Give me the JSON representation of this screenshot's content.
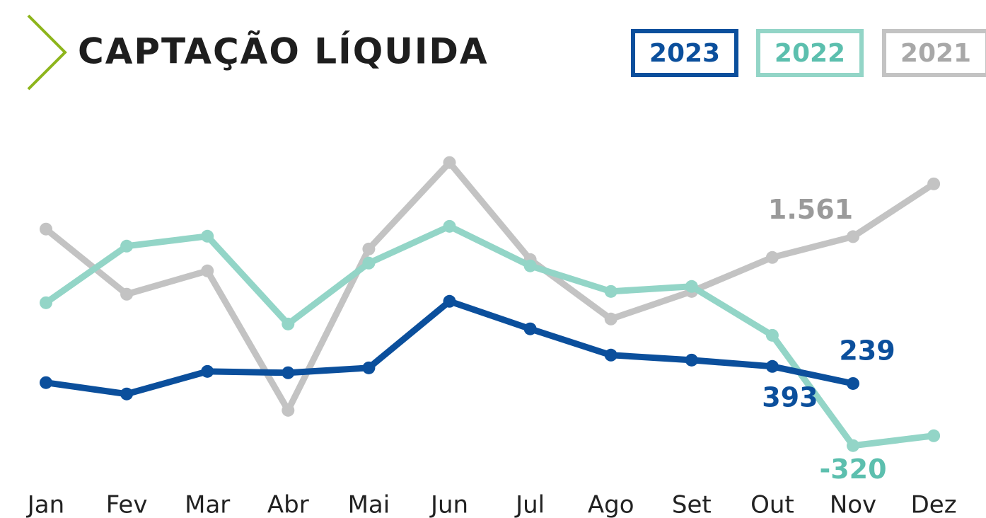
{
  "chart_data": {
    "type": "line",
    "title": "CAPTAÇÃO LÍQUIDA",
    "categories": [
      "Jan",
      "Fev",
      "Mar",
      "Abr",
      "Mai",
      "Jun",
      "Jul",
      "Ago",
      "Set",
      "Out",
      "Nov",
      "Dez"
    ],
    "ylim": [
      -500,
      2500
    ],
    "series": [
      {
        "name": "2023",
        "color": "#0b4f9c",
        "values": [
          247,
          145,
          348,
          336,
          380,
          979,
          731,
          495,
          450,
          393,
          239,
          null
        ],
        "value_labels": [
          null,
          null,
          null,
          null,
          null,
          null,
          null,
          null,
          null,
          "393",
          "239",
          null
        ]
      },
      {
        "name": "2022",
        "color": "#93d5c7",
        "values": [
          966,
          1476,
          1565,
          775,
          1323,
          1654,
          1298,
          1068,
          1113,
          673,
          -320,
          -231
        ],
        "value_labels": [
          null,
          null,
          null,
          null,
          null,
          null,
          null,
          null,
          null,
          null,
          "-320",
          null
        ]
      },
      {
        "name": "2021",
        "color": "#c3c3c3",
        "values": [
          1629,
          1043,
          1253,
          -2,
          1450,
          2228,
          1355,
          820,
          1068,
          1374,
          1561,
          2036
        ],
        "value_labels": [
          null,
          null,
          null,
          null,
          null,
          null,
          null,
          null,
          null,
          null,
          "1.561",
          null
        ]
      }
    ]
  }
}
